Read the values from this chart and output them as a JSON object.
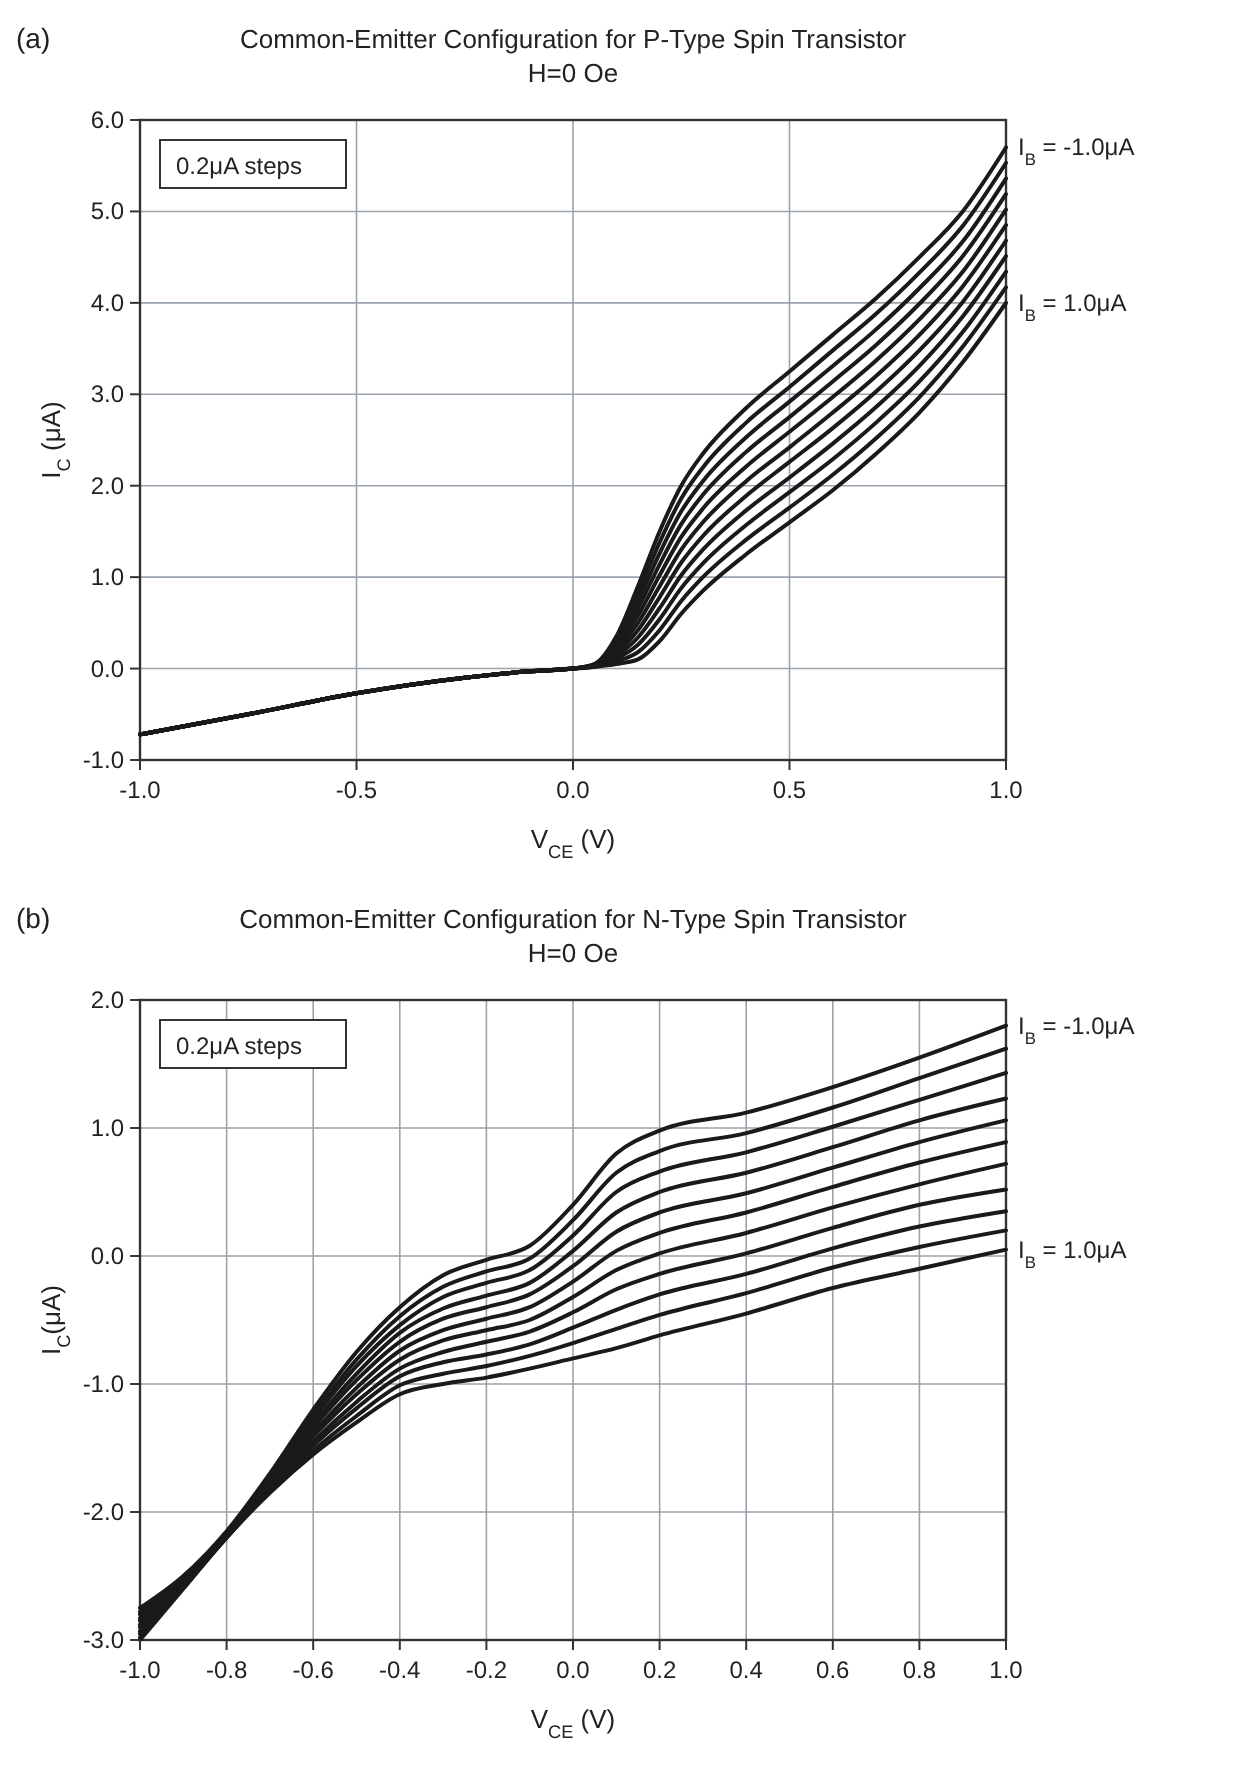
{
  "chart_data": [
    {
      "type": "line",
      "title": "Common-Emitter Configuration for P-Type Spin Transistor",
      "subtitle": "H=0 Oe",
      "xlabel": "V$_{CE}$ (V)",
      "ylabel": "I$_{C}$ (μA)",
      "grid": true,
      "line_style": "solid",
      "x": [
        -1,
        -0.75,
        -0.5,
        -0.25,
        -0.1,
        0,
        0.05,
        0.1,
        0.15,
        0.2,
        0.25,
        0.3,
        0.4,
        0.5,
        0.6,
        0.7,
        0.8,
        0.9,
        1.0
      ],
      "xlim": [
        -1,
        1
      ],
      "xticks": [
        {
          "value": -1,
          "label": "-1.0"
        },
        {
          "value": -0.5,
          "label": "-0.5"
        },
        {
          "value": 0,
          "label": "0.0"
        },
        {
          "value": 0.5,
          "label": "0.5"
        },
        {
          "value": 1,
          "label": "1.0"
        }
      ],
      "ylim": [
        -1,
        6
      ],
      "yticks": [
        {
          "value": -1,
          "label": "-1.0"
        },
        {
          "value": 0,
          "label": "0.0"
        },
        {
          "value": 1,
          "label": "1.0"
        },
        {
          "value": 2,
          "label": "2.0"
        },
        {
          "value": 3,
          "label": "3.0"
        },
        {
          "value": 4,
          "label": "4.0"
        },
        {
          "value": 5,
          "label": "5.0"
        },
        {
          "value": 6,
          "label": "6.0"
        }
      ],
      "annotations": [
        "(a)",
        "0.2μA steps",
        "I$_{B}$ = -1.0μA",
        "I$_{B}$ = 1.0μA"
      ],
      "series": [
        {
          "color": "#1a1a1a",
          "values": [
            -0.72,
            -0.5,
            -0.27,
            -0.1,
            -0.03,
            0,
            0.05,
            0.35,
            0.9,
            1.5,
            2.0,
            2.35,
            2.85,
            3.25,
            3.65,
            4.05,
            4.5,
            5.0,
            5.7
          ]
        },
        {
          "color": "#1a1a1a",
          "values": [
            -0.72,
            -0.5,
            -0.27,
            -0.1,
            -0.03,
            0,
            0.05,
            0.32,
            0.82,
            1.38,
            1.86,
            2.2,
            2.69,
            3.08,
            3.48,
            3.88,
            4.33,
            4.84,
            5.53
          ]
        },
        {
          "color": "#1a1a1a",
          "values": [
            -0.72,
            -0.5,
            -0.27,
            -0.1,
            -0.03,
            0,
            0.04,
            0.29,
            0.74,
            1.26,
            1.72,
            2.05,
            2.53,
            2.92,
            3.31,
            3.71,
            4.16,
            4.67,
            5.36
          ]
        },
        {
          "color": "#1a1a1a",
          "values": [
            -0.72,
            -0.5,
            -0.27,
            -0.1,
            -0.03,
            0,
            0.04,
            0.26,
            0.66,
            1.14,
            1.58,
            1.9,
            2.37,
            2.75,
            3.14,
            3.54,
            3.99,
            4.51,
            5.19
          ]
        },
        {
          "color": "#1a1a1a",
          "values": [
            -0.72,
            -0.5,
            -0.27,
            -0.1,
            -0.03,
            0,
            0.04,
            0.23,
            0.58,
            1.02,
            1.44,
            1.75,
            2.21,
            2.59,
            2.97,
            3.37,
            3.82,
            4.34,
            5.02
          ]
        },
        {
          "color": "#1a1a1a",
          "values": [
            -0.72,
            -0.5,
            -0.27,
            -0.1,
            -0.03,
            0,
            0.04,
            0.2,
            0.5,
            0.9,
            1.3,
            1.6,
            2.05,
            2.42,
            2.8,
            3.2,
            3.65,
            4.18,
            4.85
          ]
        },
        {
          "color": "#1a1a1a",
          "values": [
            -0.72,
            -0.5,
            -0.27,
            -0.1,
            -0.03,
            0,
            0.03,
            0.17,
            0.42,
            0.78,
            1.16,
            1.45,
            1.89,
            2.26,
            2.63,
            3.03,
            3.48,
            4.01,
            4.68
          ]
        },
        {
          "color": "#1a1a1a",
          "values": [
            -0.72,
            -0.5,
            -0.27,
            -0.1,
            -0.03,
            0,
            0.03,
            0.14,
            0.34,
            0.66,
            1.02,
            1.3,
            1.73,
            2.09,
            2.46,
            2.86,
            3.31,
            3.85,
            4.51
          ]
        },
        {
          "color": "#1a1a1a",
          "values": [
            -0.72,
            -0.5,
            -0.27,
            -0.1,
            -0.03,
            0,
            0.03,
            0.11,
            0.26,
            0.54,
            0.88,
            1.15,
            1.57,
            1.93,
            2.29,
            2.69,
            3.14,
            3.68,
            4.34
          ]
        },
        {
          "color": "#1a1a1a",
          "values": [
            -0.72,
            -0.5,
            -0.27,
            -0.1,
            -0.03,
            0,
            0.02,
            0.08,
            0.18,
            0.42,
            0.74,
            1.0,
            1.41,
            1.76,
            2.12,
            2.52,
            2.97,
            3.52,
            4.17
          ]
        },
        {
          "color": "#1a1a1a",
          "values": [
            -0.72,
            -0.5,
            -0.27,
            -0.1,
            -0.03,
            0,
            0.02,
            0.05,
            0.1,
            0.3,
            0.6,
            0.85,
            1.25,
            1.6,
            1.95,
            2.35,
            2.8,
            3.35,
            4.0
          ]
        }
      ]
    },
    {
      "type": "line",
      "title": "Common-Emitter Configuration for N-Type Spin Transistor",
      "subtitle": "H=0 Oe",
      "xlabel": "V$_{CE}$ (V)",
      "ylabel": "I$_{C}$(μA)",
      "grid": true,
      "line_style": "solid",
      "x": [
        -1,
        -0.9,
        -0.8,
        -0.7,
        -0.6,
        -0.5,
        -0.4,
        -0.3,
        -0.2,
        -0.1,
        0,
        0.1,
        0.2,
        0.4,
        0.6,
        0.8,
        1.0
      ],
      "xlim": [
        -1,
        1
      ],
      "xticks": [
        {
          "value": -1,
          "label": "-1.0"
        },
        {
          "value": -0.8,
          "label": "-0.8"
        },
        {
          "value": -0.6,
          "label": "-0.6"
        },
        {
          "value": -0.4,
          "label": "-0.4"
        },
        {
          "value": -0.2,
          "label": "-0.2"
        },
        {
          "value": 0,
          "label": "0.0"
        },
        {
          "value": 0.2,
          "label": "0.2"
        },
        {
          "value": 0.4,
          "label": "0.4"
        },
        {
          "value": 0.6,
          "label": "0.6"
        },
        {
          "value": 0.8,
          "label": "0.8"
        },
        {
          "value": 1,
          "label": "1.0"
        }
      ],
      "ylim": [
        -3,
        2
      ],
      "yticks": [
        {
          "value": -3,
          "label": "-3.0"
        },
        {
          "value": -2,
          "label": "-2.0"
        },
        {
          "value": -1,
          "label": "-1.0"
        },
        {
          "value": 0,
          "label": "0.0"
        },
        {
          "value": 1,
          "label": "1.0"
        },
        {
          "value": 2,
          "label": "2.0"
        }
      ],
      "annotations": [
        "(b)",
        "0.2μA steps",
        "I$_{B}$ = -1.0μA",
        "I$_{B}$ = 1.0μA"
      ],
      "series": [
        {
          "color": "#1a1a1a",
          "values": [
            -2.75,
            -2.5,
            -2.15,
            -1.7,
            -1.2,
            -0.75,
            -0.4,
            -0.15,
            -0.03,
            0.08,
            0.4,
            0.8,
            0.98,
            1.12,
            1.32,
            1.55,
            1.8
          ]
        },
        {
          "color": "#1a1a1a",
          "values": [
            -2.78,
            -2.51,
            -2.16,
            -1.72,
            -1.24,
            -0.81,
            -0.47,
            -0.24,
            -0.12,
            -0.02,
            0.28,
            0.65,
            0.82,
            0.96,
            1.16,
            1.39,
            1.62
          ]
        },
        {
          "color": "#1a1a1a",
          "values": [
            -2.8,
            -2.52,
            -2.16,
            -1.73,
            -1.27,
            -0.86,
            -0.54,
            -0.32,
            -0.21,
            -0.11,
            0.16,
            0.5,
            0.66,
            0.81,
            1.01,
            1.22,
            1.43
          ]
        },
        {
          "color": "#1a1a1a",
          "values": [
            -2.83,
            -2.53,
            -2.17,
            -1.75,
            -1.31,
            -0.92,
            -0.6,
            -0.41,
            -0.31,
            -0.21,
            0.04,
            0.34,
            0.5,
            0.65,
            0.85,
            1.06,
            1.23
          ]
        },
        {
          "color": "#1a1a1a",
          "values": [
            -2.85,
            -2.54,
            -2.17,
            -1.76,
            -1.34,
            -0.97,
            -0.67,
            -0.49,
            -0.4,
            -0.3,
            -0.08,
            0.19,
            0.34,
            0.49,
            0.69,
            0.89,
            1.06
          ]
        },
        {
          "color": "#1a1a1a",
          "values": [
            -2.88,
            -2.55,
            -2.18,
            -1.78,
            -1.38,
            -1.03,
            -0.74,
            -0.58,
            -0.49,
            -0.4,
            -0.2,
            0.04,
            0.18,
            0.34,
            0.54,
            0.73,
            0.89
          ]
        },
        {
          "color": "#1a1a1a",
          "values": [
            -2.9,
            -2.56,
            -2.18,
            -1.79,
            -1.41,
            -1.08,
            -0.81,
            -0.66,
            -0.58,
            -0.5,
            -0.32,
            -0.11,
            0.02,
            0.18,
            0.38,
            0.56,
            0.72
          ]
        },
        {
          "color": "#1a1a1a",
          "values": [
            -2.93,
            -2.57,
            -2.19,
            -1.81,
            -1.45,
            -1.14,
            -0.88,
            -0.75,
            -0.67,
            -0.59,
            -0.44,
            -0.26,
            -0.14,
            0.02,
            0.22,
            0.4,
            0.52
          ]
        },
        {
          "color": "#1a1a1a",
          "values": [
            -2.95,
            -2.58,
            -2.19,
            -1.82,
            -1.48,
            -1.19,
            -0.94,
            -0.83,
            -0.77,
            -0.69,
            -0.56,
            -0.42,
            -0.3,
            -0.14,
            0.06,
            0.23,
            0.35
          ]
        },
        {
          "color": "#1a1a1a",
          "values": [
            -2.98,
            -2.59,
            -2.2,
            -1.84,
            -1.52,
            -1.25,
            -1.01,
            -0.92,
            -0.86,
            -0.78,
            -0.68,
            -0.57,
            -0.46,
            -0.29,
            -0.09,
            0.07,
            0.2
          ]
        },
        {
          "color": "#1a1a1a",
          "values": [
            -3.0,
            -2.6,
            -2.2,
            -1.85,
            -1.55,
            -1.3,
            -1.08,
            -1.0,
            -0.95,
            -0.88,
            -0.8,
            -0.72,
            -0.62,
            -0.45,
            -0.25,
            -0.1,
            0.05
          ]
        }
      ]
    }
  ]
}
